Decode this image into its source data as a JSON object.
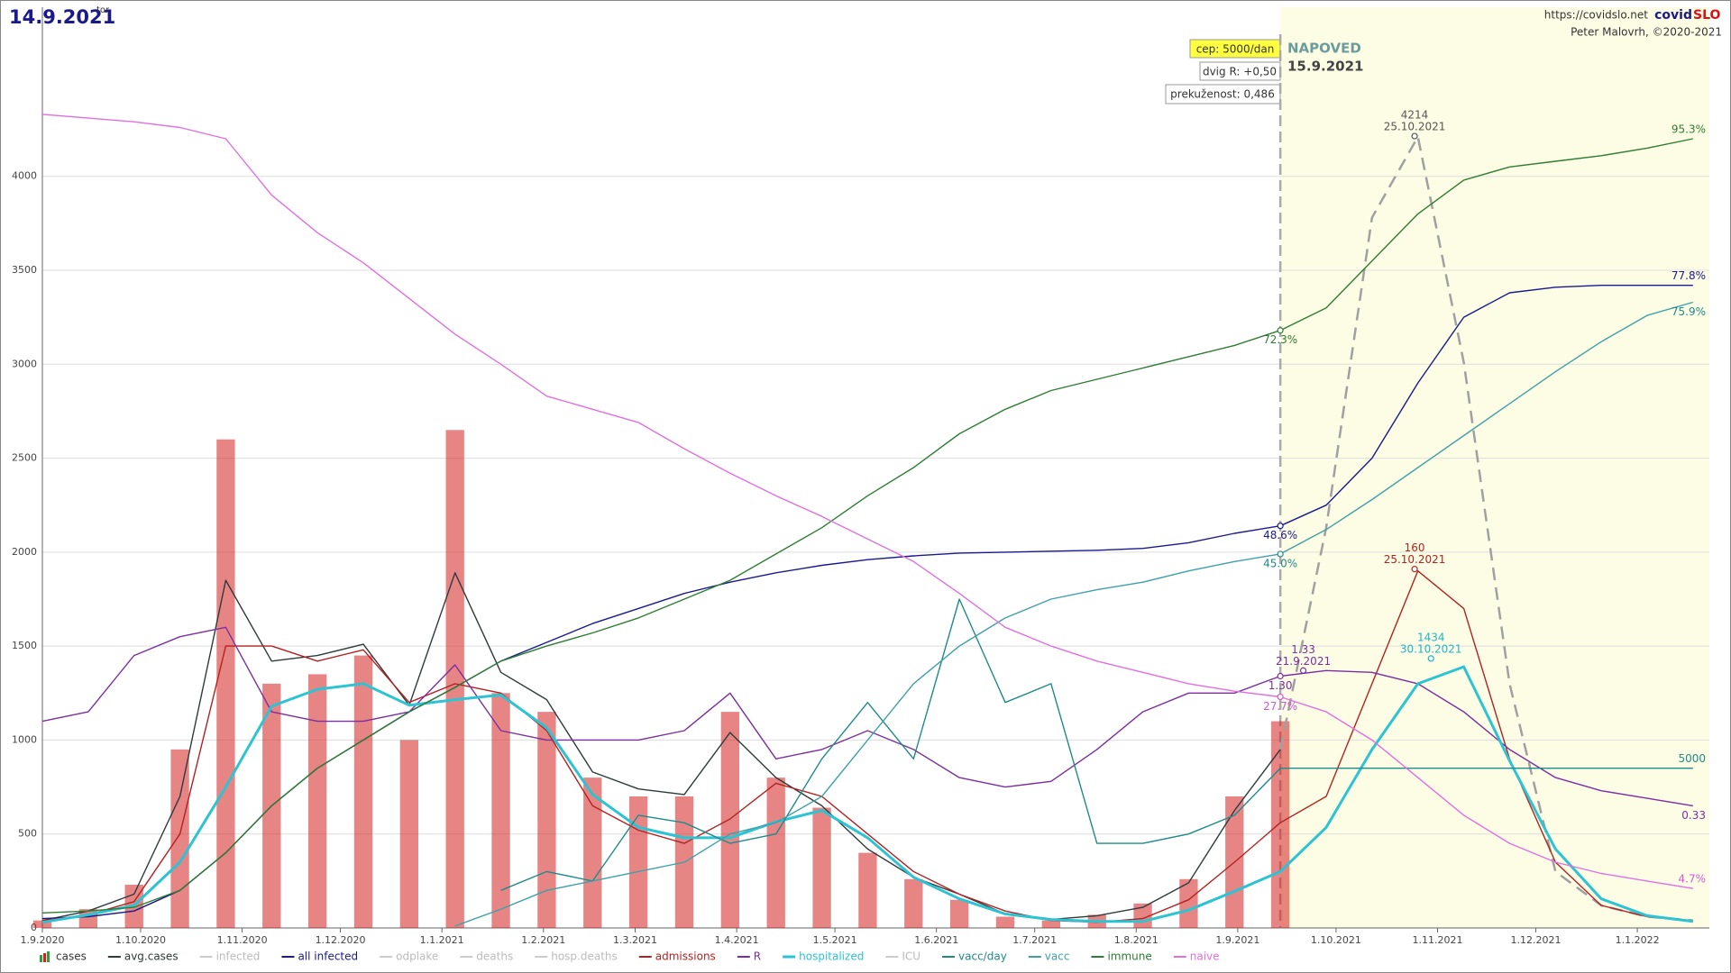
{
  "chart_data": {
    "type": "line",
    "title": "14.9.2021",
    "weekday": "tor",
    "site": "https://covidslo.net",
    "brand_a": "covid",
    "brand_b": "SLO",
    "author": "Peter Malovrh, ©2020-2021",
    "boxes": [
      "cep: 5000/dan",
      "dvig R: +0,50",
      "prekuženost: 0,486"
    ],
    "forecast_label": "NAPOVED",
    "forecast_date": "15.9.2021",
    "today": 378,
    "xlim": [
      0,
      509
    ],
    "xticks": [
      {
        "value": 0,
        "label": "1.9.2020"
      },
      {
        "value": 30,
        "label": "1.10.2020"
      },
      {
        "value": 61,
        "label": "1.11.2020"
      },
      {
        "value": 91,
        "label": "1.12.2020"
      },
      {
        "value": 122,
        "label": "1.1.2021"
      },
      {
        "value": 153,
        "label": "1.2.2021"
      },
      {
        "value": 181,
        "label": "1.3.2021"
      },
      {
        "value": 212,
        "label": "1.4.2021"
      },
      {
        "value": 242,
        "label": "1.5.2021"
      },
      {
        "value": 273,
        "label": "1.6.2021"
      },
      {
        "value": 303,
        "label": "1.7.2021"
      },
      {
        "value": 334,
        "label": "1.8.2021"
      },
      {
        "value": 365,
        "label": "1.9.2021"
      },
      {
        "value": 395,
        "label": "1.10.2021"
      },
      {
        "value": 426,
        "label": "1.11.2021"
      },
      {
        "value": 456,
        "label": "1.12.2021"
      },
      {
        "value": 487,
        "label": "1.1.2022"
      }
    ],
    "ylim": [
      0,
      4900
    ],
    "yticks": [
      0,
      500,
      1000,
      1500,
      2000,
      2500,
      3000,
      3500,
      4000
    ],
    "grid": true,
    "legend": "bottom",
    "x": [
      0,
      14,
      28,
      42,
      56,
      70,
      84,
      98,
      112,
      126,
      140,
      154,
      168,
      182,
      196,
      210,
      224,
      238,
      252,
      266,
      280,
      294,
      308,
      322,
      336,
      350,
      364,
      378,
      392,
      406,
      420,
      434,
      448,
      462,
      476,
      490,
      504
    ],
    "series": [
      {
        "name": "cases",
        "kind": "bar",
        "color": "#d42020",
        "values": [
          40,
          100,
          230,
          950,
          2600,
          1300,
          1350,
          1450,
          1000,
          2650,
          1250,
          1150,
          800,
          700,
          700,
          1150,
          800,
          640,
          400,
          260,
          150,
          60,
          40,
          70,
          130,
          260,
          700,
          1100,
          null,
          null,
          null,
          null,
          null,
          null,
          null,
          null,
          null
        ]
      },
      {
        "name": "avg.cases",
        "color": "#2f3a3a",
        "forecast_color": "#a0a0a0",
        "values": [
          40,
          90,
          180,
          700,
          1850,
          1420,
          1450,
          1510,
          1185,
          1890,
          1360,
          1215,
          830,
          740,
          710,
          1040,
          800,
          650,
          420,
          270,
          180,
          75,
          45,
          65,
          110,
          240,
          625,
          950,
          null,
          null,
          null,
          null,
          null,
          null,
          null,
          null,
          null
        ],
        "forecast": [
          null,
          null,
          null,
          null,
          null,
          null,
          null,
          null,
          null,
          null,
          null,
          null,
          null,
          null,
          null,
          null,
          null,
          null,
          null,
          null,
          null,
          null,
          null,
          null,
          null,
          null,
          null,
          950,
          2130,
          3780,
          4210,
          3010,
          1300,
          300,
          120,
          60,
          40
        ]
      },
      {
        "name": "infected",
        "color": "#c8c8c8",
        "hidden": true
      },
      {
        "name": "all infected",
        "color": "#1a1a8c",
        "values": [
          50,
          60,
          90,
          200,
          400,
          650,
          850,
          1000,
          1150,
          1280,
          1420,
          1520,
          1620,
          1700,
          1780,
          1840,
          1890,
          1930,
          1960,
          1980,
          1995,
          2000,
          2005,
          2010,
          2020,
          2050,
          2100,
          2140,
          2250,
          2500,
          2900,
          3250,
          3380,
          3410,
          3420,
          3420,
          3420
        ]
      },
      {
        "name": "odplake",
        "color": "#c8c8c8",
        "hidden": true
      },
      {
        "name": "deaths",
        "color": "#c8c8c8",
        "hidden": true
      },
      {
        "name": "hosp.deaths",
        "color": "#c8c8c8",
        "hidden": true
      },
      {
        "name": "admissions",
        "color": "#b22222",
        "values": [
          40,
          70,
          140,
          500,
          1500,
          1500,
          1420,
          1480,
          1200,
          1300,
          1250,
          1050,
          650,
          520,
          450,
          580,
          770,
          700,
          500,
          300,
          180,
          90,
          40,
          30,
          50,
          150,
          350,
          560,
          700,
          1300,
          1900,
          1700,
          900,
          350,
          120,
          60,
          40
        ]
      },
      {
        "name": "R",
        "color": "#7b2fa0",
        "values": [
          1100,
          1150,
          1450,
          1550,
          1600,
          1150,
          1100,
          1100,
          1150,
          1400,
          1050,
          1000,
          1000,
          1000,
          1050,
          1250,
          900,
          950,
          1050,
          950,
          800,
          750,
          780,
          950,
          1150,
          1250,
          1250,
          1340,
          1370,
          1360,
          1300,
          1150,
          950,
          800,
          730,
          690,
          650
        ]
      },
      {
        "name": "hospitalized",
        "color": "#2cc3d3",
        "width": 3,
        "values": [
          30,
          70,
          120,
          350,
          750,
          1180,
          1270,
          1300,
          1185,
          1215,
          1240,
          1065,
          710,
          535,
          480,
          480,
          565,
          625,
          480,
          270,
          155,
          75,
          45,
          35,
          35,
          95,
          195,
          300,
          535,
          950,
          1300,
          1390,
          890,
          420,
          155,
          65,
          35
        ]
      },
      {
        "name": "ICU",
        "color": "#c8c8c8",
        "hidden": true
      },
      {
        "name": "vacc/day",
        "color": "#1f8a8a",
        "values": [
          null,
          null,
          null,
          null,
          null,
          null,
          null,
          null,
          null,
          null,
          200,
          300,
          250,
          600,
          560,
          450,
          500,
          900,
          1200,
          900,
          1750,
          1200,
          1300,
          450,
          450,
          500,
          600,
          850,
          850,
          850,
          850,
          850,
          850,
          850,
          850,
          850,
          850
        ]
      },
      {
        "name": "vacc",
        "color": "#3fa0a8",
        "values": [
          null,
          null,
          null,
          null,
          null,
          null,
          null,
          null,
          null,
          10,
          100,
          200,
          250,
          300,
          350,
          500,
          560,
          700,
          1000,
          1300,
          1500,
          1650,
          1750,
          1800,
          1840,
          1900,
          1950,
          1990,
          2120,
          2280,
          2450,
          2620,
          2790,
          2960,
          3120,
          3260,
          3330
        ]
      },
      {
        "name": "immune",
        "color": "#2e7d32",
        "values": [
          80,
          90,
          110,
          200,
          400,
          650,
          850,
          1000,
          1150,
          1280,
          1420,
          1500,
          1570,
          1650,
          1750,
          1850,
          1990,
          2130,
          2300,
          2450,
          2630,
          2760,
          2860,
          2920,
          2980,
          3040,
          3100,
          3180,
          3300,
          3550,
          3800,
          3980,
          4050,
          4080,
          4110,
          4150,
          4200
        ]
      },
      {
        "name": "naive",
        "color": "#e070e0",
        "values": [
          4330,
          4310,
          4290,
          4260,
          4200,
          3900,
          3700,
          3540,
          3350,
          3160,
          3000,
          2830,
          2760,
          2690,
          2550,
          2420,
          2300,
          2190,
          2070,
          1950,
          1780,
          1600,
          1500,
          1420,
          1360,
          1300,
          1260,
          1230,
          1150,
          1000,
          800,
          600,
          450,
          350,
          290,
          250,
          210
        ]
      }
    ],
    "annotations": [
      {
        "x": 419,
        "y": 4214,
        "lines": [
          "4214",
          "25.10.2021"
        ],
        "color": "#555555",
        "position": "above"
      },
      {
        "x": 419,
        "y": 1910,
        "lines": [
          "160",
          "25.10.2021"
        ],
        "color": "#b22222",
        "position": "above"
      },
      {
        "x": 424,
        "y": 1434,
        "lines": [
          "1434",
          "30.10.2021"
        ],
        "color": "#1fb5c8",
        "position": "above"
      },
      {
        "x": 385,
        "y": 1370,
        "lines": [
          "1.33",
          "21.9.2021"
        ],
        "color": "#7b2fa0",
        "position": "above"
      },
      {
        "x": 378,
        "y": 1340,
        "lines": [
          "1.30"
        ],
        "color": "#7b2fa0",
        "position": "below"
      },
      {
        "x": 378,
        "y": 3180,
        "lines": [
          "72.3%"
        ],
        "color": "#2e7d32",
        "position": "below"
      },
      {
        "x": 378,
        "y": 2140,
        "lines": [
          "48.6%"
        ],
        "color": "#1a1a8c",
        "position": "below"
      },
      {
        "x": 378,
        "y": 1990,
        "lines": [
          "45.0%"
        ],
        "color": "#1f8a8a",
        "position": "below"
      },
      {
        "x": 378,
        "y": 1230,
        "lines": [
          "27.7%"
        ],
        "color": "#d05ad0",
        "position": "below"
      },
      {
        "x": 509,
        "y": 4200,
        "lines": [
          "95.3%"
        ],
        "color": "#2e7d32",
        "position": "above"
      },
      {
        "x": 509,
        "y": 3420,
        "lines": [
          "77.8%"
        ],
        "color": "#1a1a8c",
        "position": "above"
      },
      {
        "x": 509,
        "y": 3330,
        "lines": [
          "75.9%"
        ],
        "color": "#1f8a8a",
        "position": "below"
      },
      {
        "x": 509,
        "y": 850,
        "lines": [
          "5000"
        ],
        "color": "#1f8a8a",
        "position": "above"
      },
      {
        "x": 509,
        "y": 650,
        "lines": [
          "0.33"
        ],
        "color": "#7b2fa0",
        "position": "below"
      },
      {
        "x": 509,
        "y": 210,
        "lines": [
          "4.7%"
        ],
        "color": "#d05ad0",
        "position": "above"
      }
    ]
  }
}
